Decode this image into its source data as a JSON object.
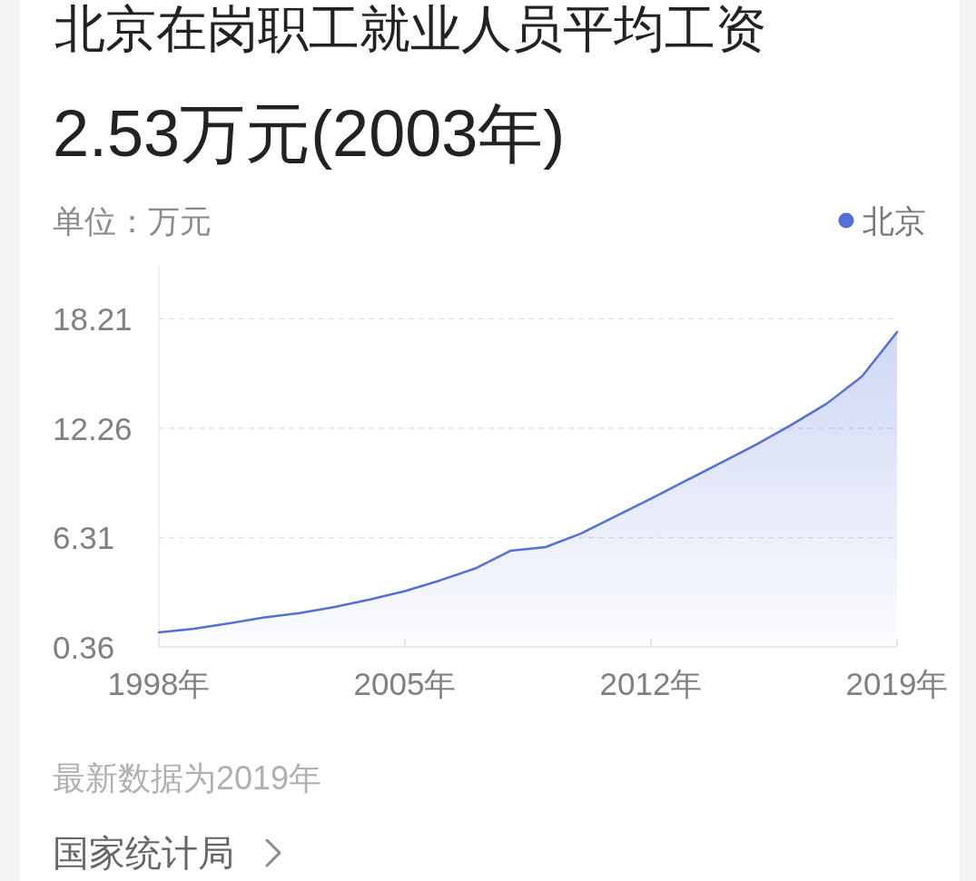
{
  "chart_data": {
    "type": "area",
    "title": "北京在岗职工就业人员平均工资",
    "subtitle": "2.53万元(2003年)",
    "ylabel": "单位：万元",
    "x": [
      1998,
      1999,
      2000,
      2001,
      2002,
      2003,
      2004,
      2005,
      2006,
      2007,
      2008,
      2009,
      2010,
      2011,
      2012,
      2013,
      2014,
      2015,
      2016,
      2017,
      2018,
      2019
    ],
    "series": [
      {
        "name": "北京",
        "color": "#5470d8",
        "values": [
          1.15,
          1.35,
          1.64,
          1.97,
          2.2,
          2.53,
          2.94,
          3.4,
          3.98,
          4.63,
          5.59,
          5.79,
          6.53,
          7.48,
          8.43,
          9.41,
          10.39,
          11.38,
          12.45,
          13.6,
          15.08,
          17.5
        ]
      }
    ],
    "xlim": [
      1998,
      2019
    ],
    "xticks": [
      {
        "value": 1998,
        "label": "1998年"
      },
      {
        "value": 2005,
        "label": "2005年"
      },
      {
        "value": 2012,
        "label": "2012年"
      },
      {
        "value": 2019,
        "label": "2019年"
      }
    ],
    "ylim": [
      0.36,
      21.1
    ],
    "yticks": [
      0.36,
      6.31,
      12.26,
      18.21
    ],
    "grid": "y",
    "legend": "top right",
    "annotations": [
      "最新数据为2019年",
      "国家统计局"
    ]
  }
}
